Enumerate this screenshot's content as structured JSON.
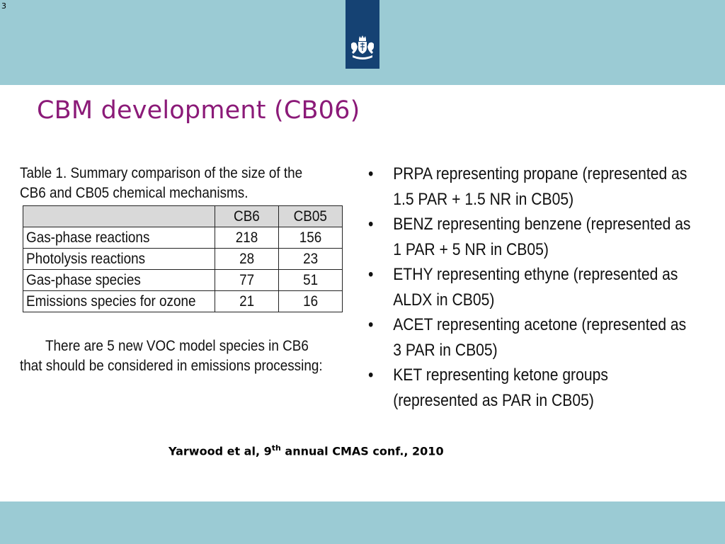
{
  "slide_number": "3",
  "title": "CBM development (CB06)",
  "table": {
    "caption": "Table 1.  Summary comparison of the size of the CB6 and CB05 chemical mechanisms.",
    "headers": [
      "",
      "CB6",
      "CB05"
    ],
    "rows": [
      {
        "label": "Gas-phase reactions",
        "cb6": "218",
        "cb05": "156"
      },
      {
        "label": "Photolysis reactions",
        "cb6": "28",
        "cb05": "23"
      },
      {
        "label": "Gas-phase species",
        "cb6": "77",
        "cb05": "51"
      },
      {
        "label": "Emissions species for ozone",
        "cb6": "21",
        "cb05": "16"
      }
    ]
  },
  "note": "There are 5 new VOC model species in CB6 that should be considered in emissions processing:",
  "bullet_glyph": "•",
  "bullets": [
    "PRPA representing propane (represented as 1.5 PAR + 1.5 NR in CB05)",
    "BENZ representing benzene (represented as 1 PAR + 5 NR in  CB05)",
    "ETHY representing ethyne (represented as ALDX in CB05)",
    "ACET representing acetone (represented as 3 PAR in CB05)",
    "KET representing ketone groups (represented as PAR in CB05)"
  ],
  "citation": {
    "before": "Yarwood et al, 9",
    "sup": "th",
    "after": " annual CMAS conf., 2010"
  },
  "colors": {
    "band": "#9bcbd4",
    "logo_bg": "#154273",
    "title": "#8b1a78",
    "table_header_bg": "#d9d9d9"
  },
  "icons": {
    "logo": "dutch-government-coat-of-arms-icon"
  }
}
